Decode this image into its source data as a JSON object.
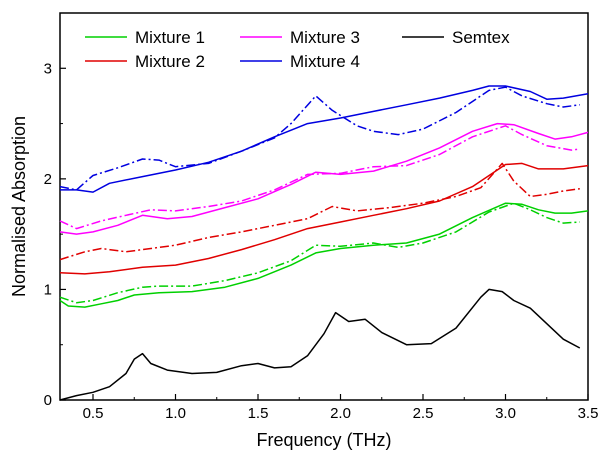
{
  "chart_data": {
    "type": "line",
    "title": "",
    "xlabel": "Frequency (THz)",
    "ylabel": "Normalised Absorption",
    "xlim": [
      0.3,
      3.5
    ],
    "ylim": [
      0,
      3.5
    ],
    "x_ticks": [
      "0.5",
      "1.0",
      "1.5",
      "2.0",
      "2.5",
      "3.0",
      "3.5"
    ],
    "y_ticks": [
      "0",
      "1",
      "2",
      "3"
    ],
    "grid": false,
    "legend_position": "top, inside plot",
    "series": [
      {
        "name": "Mixture 1",
        "color": "#00d000",
        "style": "solid",
        "points": [
          [
            0.3,
            0.9
          ],
          [
            0.35,
            0.85
          ],
          [
            0.45,
            0.84
          ],
          [
            0.55,
            0.87
          ],
          [
            0.65,
            0.9
          ],
          [
            0.75,
            0.95
          ],
          [
            0.9,
            0.97
          ],
          [
            1.1,
            0.98
          ],
          [
            1.3,
            1.02
          ],
          [
            1.5,
            1.1
          ],
          [
            1.7,
            1.22
          ],
          [
            1.85,
            1.33
          ],
          [
            2.0,
            1.37
          ],
          [
            2.2,
            1.4
          ],
          [
            2.4,
            1.42
          ],
          [
            2.6,
            1.5
          ],
          [
            2.8,
            1.65
          ],
          [
            3.0,
            1.78
          ],
          [
            3.1,
            1.77
          ],
          [
            3.2,
            1.72
          ],
          [
            3.3,
            1.69
          ],
          [
            3.4,
            1.69
          ],
          [
            3.5,
            1.71
          ]
        ]
      },
      {
        "name": "Mixture 1 (dash-dot)",
        "color": "#00d000",
        "style": "dashdot",
        "points": [
          [
            0.3,
            0.93
          ],
          [
            0.4,
            0.88
          ],
          [
            0.5,
            0.9
          ],
          [
            0.65,
            0.97
          ],
          [
            0.8,
            1.02
          ],
          [
            0.9,
            1.03
          ],
          [
            1.1,
            1.03
          ],
          [
            1.3,
            1.08
          ],
          [
            1.5,
            1.15
          ],
          [
            1.7,
            1.26
          ],
          [
            1.85,
            1.4
          ],
          [
            2.0,
            1.39
          ],
          [
            2.2,
            1.42
          ],
          [
            2.35,
            1.38
          ],
          [
            2.5,
            1.42
          ],
          [
            2.7,
            1.52
          ],
          [
            2.9,
            1.7
          ],
          [
            3.05,
            1.78
          ],
          [
            3.15,
            1.72
          ],
          [
            3.25,
            1.65
          ],
          [
            3.35,
            1.6
          ],
          [
            3.45,
            1.61
          ]
        ]
      },
      {
        "name": "Mixture 2",
        "color": "#e00000",
        "style": "solid",
        "points": [
          [
            0.3,
            1.15
          ],
          [
            0.45,
            1.14
          ],
          [
            0.6,
            1.16
          ],
          [
            0.8,
            1.2
          ],
          [
            1.0,
            1.22
          ],
          [
            1.2,
            1.28
          ],
          [
            1.4,
            1.36
          ],
          [
            1.6,
            1.45
          ],
          [
            1.8,
            1.55
          ],
          [
            2.0,
            1.61
          ],
          [
            2.2,
            1.67
          ],
          [
            2.4,
            1.73
          ],
          [
            2.6,
            1.8
          ],
          [
            2.8,
            1.93
          ],
          [
            3.0,
            2.13
          ],
          [
            3.1,
            2.14
          ],
          [
            3.2,
            2.09
          ],
          [
            3.35,
            2.09
          ],
          [
            3.5,
            2.12
          ]
        ]
      },
      {
        "name": "Mixture 2 (dash-dot)",
        "color": "#e00000",
        "style": "dashdot",
        "points": [
          [
            0.3,
            1.27
          ],
          [
            0.45,
            1.34
          ],
          [
            0.55,
            1.37
          ],
          [
            0.7,
            1.34
          ],
          [
            0.85,
            1.37
          ],
          [
            1.0,
            1.4
          ],
          [
            1.2,
            1.47
          ],
          [
            1.4,
            1.52
          ],
          [
            1.6,
            1.58
          ],
          [
            1.8,
            1.64
          ],
          [
            1.95,
            1.75
          ],
          [
            2.1,
            1.71
          ],
          [
            2.3,
            1.74
          ],
          [
            2.5,
            1.78
          ],
          [
            2.7,
            1.84
          ],
          [
            2.85,
            1.92
          ],
          [
            2.98,
            2.14
          ],
          [
            3.05,
            1.98
          ],
          [
            3.15,
            1.84
          ],
          [
            3.25,
            1.86
          ],
          [
            3.35,
            1.89
          ],
          [
            3.45,
            1.91
          ]
        ]
      },
      {
        "name": "Mixture 3",
        "color": "#ff00ff",
        "style": "solid",
        "points": [
          [
            0.3,
            1.52
          ],
          [
            0.4,
            1.5
          ],
          [
            0.5,
            1.52
          ],
          [
            0.65,
            1.58
          ],
          [
            0.8,
            1.67
          ],
          [
            0.95,
            1.64
          ],
          [
            1.1,
            1.66
          ],
          [
            1.3,
            1.74
          ],
          [
            1.5,
            1.82
          ],
          [
            1.7,
            1.95
          ],
          [
            1.85,
            2.06
          ],
          [
            2.0,
            2.04
          ],
          [
            2.2,
            2.07
          ],
          [
            2.4,
            2.16
          ],
          [
            2.6,
            2.28
          ],
          [
            2.8,
            2.43
          ],
          [
            2.95,
            2.5
          ],
          [
            3.05,
            2.49
          ],
          [
            3.2,
            2.41
          ],
          [
            3.3,
            2.36
          ],
          [
            3.4,
            2.38
          ],
          [
            3.5,
            2.42
          ]
        ]
      },
      {
        "name": "Mixture 3 (dash-dot)",
        "color": "#ff00ff",
        "style": "dashdot",
        "points": [
          [
            0.3,
            1.62
          ],
          [
            0.4,
            1.55
          ],
          [
            0.55,
            1.62
          ],
          [
            0.7,
            1.67
          ],
          [
            0.85,
            1.72
          ],
          [
            1.0,
            1.71
          ],
          [
            1.2,
            1.75
          ],
          [
            1.4,
            1.8
          ],
          [
            1.6,
            1.9
          ],
          [
            1.8,
            2.04
          ],
          [
            2.0,
            2.05
          ],
          [
            2.2,
            2.11
          ],
          [
            2.4,
            2.12
          ],
          [
            2.6,
            2.22
          ],
          [
            2.8,
            2.38
          ],
          [
            3.0,
            2.48
          ],
          [
            3.1,
            2.4
          ],
          [
            3.25,
            2.3
          ],
          [
            3.4,
            2.26
          ],
          [
            3.45,
            2.27
          ]
        ]
      },
      {
        "name": "Mixture 4",
        "color": "#0000e0",
        "style": "solid",
        "points": [
          [
            0.3,
            1.9
          ],
          [
            0.4,
            1.9
          ],
          [
            0.5,
            1.88
          ],
          [
            0.6,
            1.96
          ],
          [
            0.8,
            2.02
          ],
          [
            1.0,
            2.08
          ],
          [
            1.2,
            2.15
          ],
          [
            1.4,
            2.25
          ],
          [
            1.6,
            2.38
          ],
          [
            1.8,
            2.5
          ],
          [
            2.0,
            2.55
          ],
          [
            2.2,
            2.61
          ],
          [
            2.4,
            2.67
          ],
          [
            2.6,
            2.73
          ],
          [
            2.8,
            2.8
          ],
          [
            2.9,
            2.84
          ],
          [
            3.0,
            2.84
          ],
          [
            3.15,
            2.79
          ],
          [
            3.25,
            2.72
          ],
          [
            3.35,
            2.73
          ],
          [
            3.5,
            2.77
          ]
        ]
      },
      {
        "name": "Mixture 4 (dash-dot)",
        "color": "#0000e0",
        "style": "dashdot",
        "points": [
          [
            0.3,
            1.93
          ],
          [
            0.4,
            1.9
          ],
          [
            0.5,
            2.03
          ],
          [
            0.65,
            2.1
          ],
          [
            0.8,
            2.18
          ],
          [
            0.9,
            2.17
          ],
          [
            1.0,
            2.11
          ],
          [
            1.2,
            2.14
          ],
          [
            1.4,
            2.25
          ],
          [
            1.6,
            2.37
          ],
          [
            1.7,
            2.5
          ],
          [
            1.85,
            2.75
          ],
          [
            1.95,
            2.62
          ],
          [
            2.1,
            2.48
          ],
          [
            2.2,
            2.43
          ],
          [
            2.35,
            2.4
          ],
          [
            2.5,
            2.45
          ],
          [
            2.7,
            2.6
          ],
          [
            2.9,
            2.8
          ],
          [
            3.0,
            2.83
          ],
          [
            3.1,
            2.75
          ],
          [
            3.25,
            2.68
          ],
          [
            3.35,
            2.65
          ],
          [
            3.45,
            2.67
          ]
        ]
      },
      {
        "name": "Semtex",
        "color": "#000000",
        "style": "solid",
        "points": [
          [
            0.3,
            0.0
          ],
          [
            0.4,
            0.04
          ],
          [
            0.5,
            0.07
          ],
          [
            0.6,
            0.12
          ],
          [
            0.7,
            0.24
          ],
          [
            0.75,
            0.37
          ],
          [
            0.8,
            0.42
          ],
          [
            0.85,
            0.33
          ],
          [
            0.95,
            0.27
          ],
          [
            1.1,
            0.24
          ],
          [
            1.25,
            0.25
          ],
          [
            1.4,
            0.31
          ],
          [
            1.5,
            0.33
          ],
          [
            1.6,
            0.29
          ],
          [
            1.7,
            0.3
          ],
          [
            1.8,
            0.4
          ],
          [
            1.9,
            0.6
          ],
          [
            1.97,
            0.79
          ],
          [
            2.05,
            0.71
          ],
          [
            2.1,
            0.72
          ],
          [
            2.15,
            0.73
          ],
          [
            2.25,
            0.61
          ],
          [
            2.4,
            0.5
          ],
          [
            2.55,
            0.51
          ],
          [
            2.7,
            0.65
          ],
          [
            2.85,
            0.93
          ],
          [
            2.9,
            1.0
          ],
          [
            2.98,
            0.98
          ],
          [
            3.05,
            0.9
          ],
          [
            3.15,
            0.83
          ],
          [
            3.25,
            0.69
          ],
          [
            3.35,
            0.55
          ],
          [
            3.45,
            0.47
          ]
        ]
      }
    ],
    "legend": [
      {
        "label": "Mixture 1",
        "color": "#00d000"
      },
      {
        "label": "Mixture 3",
        "color": "#ff00ff"
      },
      {
        "label": "Semtex",
        "color": "#000000"
      },
      {
        "label": "Mixture 2",
        "color": "#e00000"
      },
      {
        "label": "Mixture 4",
        "color": "#0000e0"
      }
    ]
  }
}
